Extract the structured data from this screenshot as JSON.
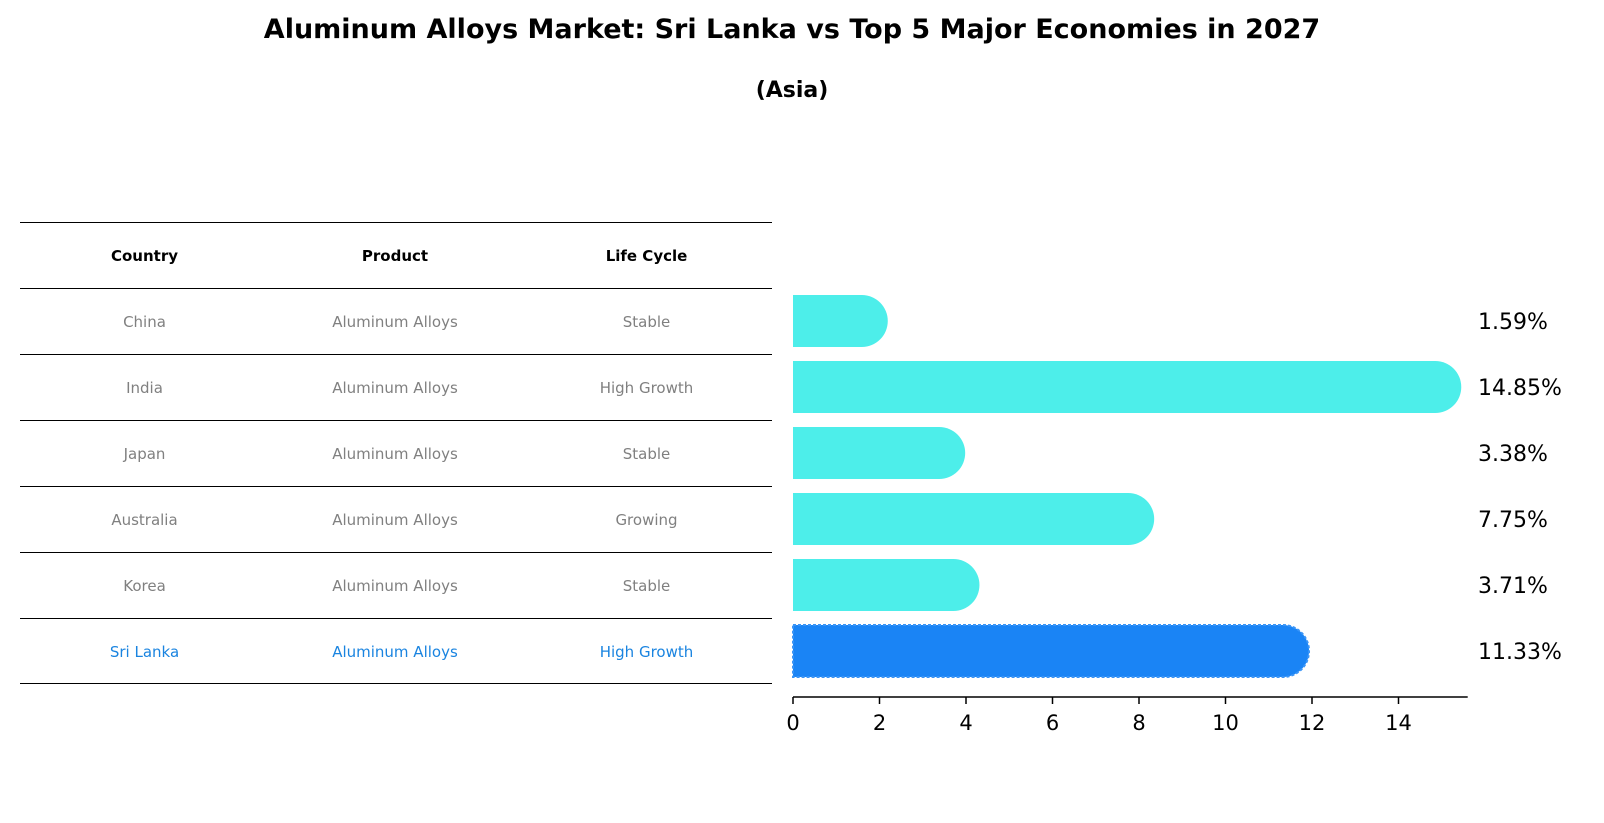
{
  "title": "Aluminum Alloys Market: Sri Lanka vs Top 5 Major Economies in 2027",
  "subtitle": "(Asia)",
  "table": {
    "headers": [
      "Country",
      "Product",
      "Life Cycle"
    ],
    "rows": [
      {
        "country": "China",
        "product": "Aluminum Alloys",
        "life_cycle": "Stable"
      },
      {
        "country": "India",
        "product": "Aluminum Alloys",
        "life_cycle": "High Growth"
      },
      {
        "country": "Japan",
        "product": "Aluminum Alloys",
        "life_cycle": "Stable"
      },
      {
        "country": "Australia",
        "product": "Aluminum Alloys",
        "life_cycle": "Growing"
      },
      {
        "country": "Korea",
        "product": "Aluminum Alloys",
        "life_cycle": "Stable"
      },
      {
        "country": "Sri Lanka",
        "product": "Aluminum Alloys",
        "life_cycle": "High Growth"
      }
    ]
  },
  "colors": {
    "bar": "#4deeea",
    "highlight_bar": "#1a84f5",
    "highlight_text": "#1a84e0",
    "row_text": "#808080"
  },
  "chart_data": {
    "type": "bar",
    "orientation": "horizontal",
    "categories": [
      "China",
      "India",
      "Japan",
      "Australia",
      "Korea",
      "Sri Lanka"
    ],
    "values": [
      1.59,
      14.85,
      3.38,
      7.75,
      3.71,
      11.33
    ],
    "value_labels": [
      "1.59%",
      "14.85%",
      "3.38%",
      "7.75%",
      "3.71%",
      "11.33%"
    ],
    "highlight": "Sri Lanka",
    "xlim": [
      0,
      15.6
    ],
    "xticks": [
      0,
      2,
      4,
      6,
      8,
      10,
      12,
      14
    ],
    "xlabel": "",
    "ylabel": "",
    "grid": false
  }
}
